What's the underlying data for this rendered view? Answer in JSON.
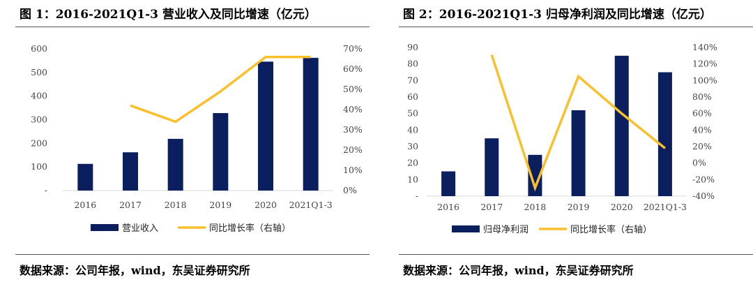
{
  "panels": [
    {
      "title": "图 1：2016-2021Q1-3 营业收入及同比增速（亿元）",
      "source": "数据来源：公司年报，wind，东吴证券研究所"
    },
    {
      "title": "图 2：2016-2021Q1-3 归母净利润及同比增速（亿元）",
      "source": "数据来源：公司年报，wind，东吴证券研究所"
    }
  ],
  "colors": {
    "bar": "#0b1f5e",
    "line": "#fcbf2c"
  },
  "chart_data": [
    {
      "type": "bar",
      "categories": [
        "2016",
        "2017",
        "2018",
        "2019",
        "2020",
        "2021Q1-3"
      ],
      "series": [
        {
          "name": "营业收入",
          "type": "bar",
          "axis": "left",
          "values": [
            113,
            162,
            219,
            328,
            546,
            562
          ]
        },
        {
          "name": "同比增长率（右轴）",
          "type": "line",
          "axis": "right",
          "values": [
            null,
            42,
            34,
            49,
            66,
            66
          ]
        }
      ],
      "y_left": {
        "min": 0,
        "max": 600,
        "ticks": [
          0,
          100,
          200,
          300,
          400,
          500,
          600
        ],
        "tick_labels": [
          "-",
          "100",
          "200",
          "300",
          "400",
          "500",
          "600"
        ]
      },
      "y_right": {
        "min": 0,
        "max": 70,
        "ticks": [
          0,
          10,
          20,
          30,
          40,
          50,
          60,
          70
        ],
        "unit": "%"
      },
      "grid": false,
      "legend": "bottom"
    },
    {
      "type": "bar",
      "categories": [
        "2016",
        "2017",
        "2018",
        "2019",
        "2020",
        "2021Q1-3"
      ],
      "series": [
        {
          "name": "归母净利润",
          "type": "bar",
          "axis": "left",
          "values": [
            15,
            35,
            25,
            52,
            85,
            75
          ]
        },
        {
          "name": "同比增长率（右轴）",
          "type": "line",
          "axis": "right",
          "values": [
            null,
            131,
            -30,
            105,
            60,
            18
          ]
        }
      ],
      "y_left": {
        "min": 0,
        "max": 90,
        "ticks": [
          0,
          10,
          20,
          30,
          40,
          50,
          60,
          70,
          80,
          90
        ],
        "tick_labels": [
          "-",
          "10",
          "20",
          "30",
          "40",
          "50",
          "60",
          "70",
          "80",
          "90"
        ]
      },
      "y_right": {
        "min": -40,
        "max": 140,
        "ticks": [
          -40,
          -20,
          0,
          20,
          40,
          60,
          80,
          100,
          120,
          140
        ],
        "unit": "%"
      },
      "grid": false,
      "legend": "bottom"
    }
  ]
}
